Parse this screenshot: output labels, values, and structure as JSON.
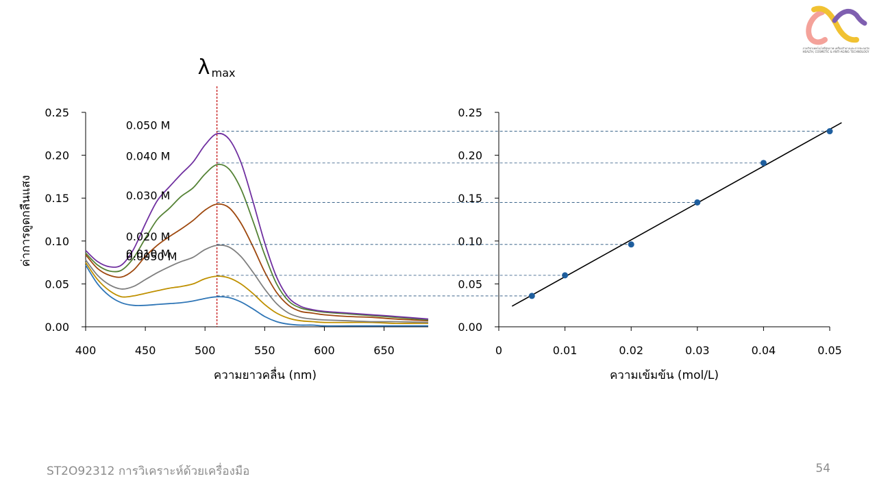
{
  "slide": {
    "footer_course": "ST2O92312  การวิเคราะห์ด้วยเครื่องมือ",
    "page_number": "54",
    "logo_text": "ภาควิชาเทคโนโลยีสุขภาพ เครื่องสำอางและการชะลอวัย HEALTH, COSMETIC & ANTI-AGING TECHNOLOGY"
  },
  "colors": {
    "purple": "#7030a0",
    "green": "#548235",
    "brown": "#9e480e",
    "gray": "#7f7f7f",
    "gold": "#bf9000",
    "blue": "#2e75b6",
    "marker": "#1f5f9f",
    "guide": "#1f4e79",
    "lambda_line": "#c00000"
  },
  "chart_data": [
    {
      "type": "line",
      "xlabel": "ความยาวคลื่น (nm)",
      "ylabel": "ค่าการดูดกลืนแสง",
      "xlim": [
        400,
        687
      ],
      "ylim": [
        0,
        0.25
      ],
      "xticks": [
        "400",
        "450",
        "500",
        "550",
        "600",
        "650"
      ],
      "yticks": [
        "0.00",
        "0.05",
        "0.10",
        "0.15",
        "0.20",
        "0.25"
      ],
      "lambda_label": "λ",
      "lambda_sub": "max",
      "lambda_x": 510,
      "x": [
        400,
        410,
        420,
        430,
        440,
        450,
        460,
        470,
        480,
        490,
        500,
        510,
        520,
        530,
        540,
        550,
        560,
        570,
        580,
        590,
        600,
        620,
        640,
        660,
        687
      ],
      "series": [
        {
          "name": "0.050 M",
          "label_x": 467,
          "color_key": "purple",
          "values": [
            0.089,
            0.076,
            0.07,
            0.072,
            0.09,
            0.12,
            0.147,
            0.163,
            0.178,
            0.192,
            0.212,
            0.225,
            0.219,
            0.192,
            0.147,
            0.098,
            0.058,
            0.034,
            0.024,
            0.02,
            0.018,
            0.016,
            0.014,
            0.012,
            0.009
          ]
        },
        {
          "name": "0.040 M",
          "label_x": 467,
          "color_key": "green",
          "values": [
            0.086,
            0.072,
            0.065,
            0.066,
            0.08,
            0.103,
            0.125,
            0.138,
            0.152,
            0.162,
            0.178,
            0.189,
            0.184,
            0.161,
            0.124,
            0.084,
            0.05,
            0.03,
            0.022,
            0.019,
            0.017,
            0.015,
            0.013,
            0.011,
            0.008
          ]
        },
        {
          "name": "0.030 M",
          "label_x": 467,
          "color_key": "brown",
          "values": [
            0.084,
            0.068,
            0.06,
            0.058,
            0.066,
            0.082,
            0.095,
            0.105,
            0.114,
            0.124,
            0.136,
            0.143,
            0.139,
            0.121,
            0.094,
            0.064,
            0.04,
            0.025,
            0.018,
            0.016,
            0.014,
            0.012,
            0.011,
            0.009,
            0.007
          ]
        },
        {
          "name": "0.020 M",
          "label_x": 467,
          "color_key": "gray",
          "values": [
            0.078,
            0.06,
            0.049,
            0.044,
            0.047,
            0.055,
            0.063,
            0.07,
            0.076,
            0.081,
            0.09,
            0.095,
            0.093,
            0.082,
            0.064,
            0.044,
            0.027,
            0.016,
            0.011,
            0.009,
            0.008,
            0.007,
            0.006,
            0.006,
            0.005
          ]
        },
        {
          "name": "0.010 M",
          "label_x": 467,
          "color_key": "gold",
          "values": [
            0.075,
            0.055,
            0.042,
            0.035,
            0.036,
            0.039,
            0.042,
            0.045,
            0.047,
            0.05,
            0.056,
            0.059,
            0.057,
            0.05,
            0.039,
            0.026,
            0.016,
            0.01,
            0.007,
            0.006,
            0.005,
            0.005,
            0.005,
            0.004,
            0.004
          ]
        },
        {
          "name": "0.0050 M",
          "label_x": 467,
          "color_key": "blue",
          "values": [
            0.072,
            0.05,
            0.036,
            0.028,
            0.025,
            0.025,
            0.026,
            0.027,
            0.028,
            0.03,
            0.033,
            0.035,
            0.034,
            0.029,
            0.021,
            0.012,
            0.006,
            0.003,
            0.002,
            0.002,
            0.001,
            0.001,
            0.001,
            0.001,
            0.001
          ]
        }
      ]
    },
    {
      "type": "scatter",
      "xlabel": "ความเข้มข้น (mol/L)",
      "ylabel": "",
      "xlim": [
        0,
        0.05
      ],
      "ylim": [
        0,
        0.25
      ],
      "xticks": [
        "0",
        "0.01",
        "0.02",
        "0.03",
        "0.04",
        "0.05"
      ],
      "yticks": [
        "0.00",
        "0.05",
        "0.10",
        "0.15",
        "0.20",
        "0.25"
      ],
      "points": [
        {
          "x": 0.005,
          "y": 0.036
        },
        {
          "x": 0.01,
          "y": 0.06
        },
        {
          "x": 0.02,
          "y": 0.096
        },
        {
          "x": 0.03,
          "y": 0.145
        },
        {
          "x": 0.04,
          "y": 0.191
        },
        {
          "x": 0.05,
          "y": 0.228
        }
      ],
      "trendline": {
        "x": [
          0.002,
          0.0518
        ],
        "y": [
          0.024,
          0.238
        ]
      },
      "guides": [
        0.228,
        0.191,
        0.145,
        0.096,
        0.06,
        0.036
      ]
    }
  ]
}
